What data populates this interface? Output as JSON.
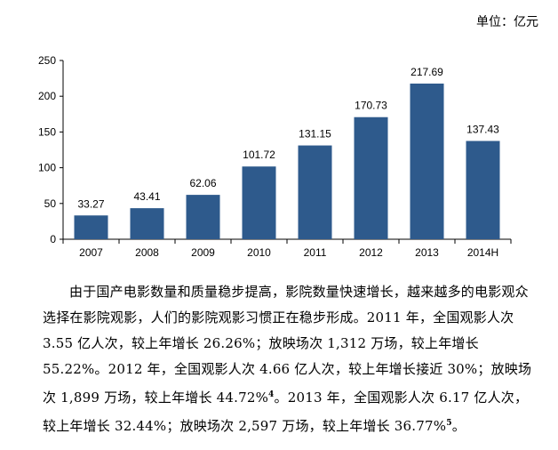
{
  "unit_label": "单位：亿元",
  "chart_data": {
    "type": "bar",
    "categories": [
      "2007",
      "2008",
      "2009",
      "2010",
      "2011",
      "2012",
      "2013",
      "2014H"
    ],
    "values": [
      33.27,
      43.41,
      62.06,
      101.72,
      131.15,
      170.73,
      217.69,
      137.43
    ],
    "value_labels": [
      "33.27",
      "43.41",
      "62.06",
      "101.72",
      "131.15",
      "170.73",
      "217.69",
      "137.43"
    ],
    "yticks": [
      "0",
      "50",
      "100",
      "150",
      "200",
      "250"
    ],
    "ylim": [
      0,
      250
    ],
    "bar_color": "#2e5a8c",
    "grid": false
  },
  "paragraph": {
    "text_1": "由于国产电影数量和质量稳步提高，影院数量快速增长，越来越多的电影观众选择在影院观影，人们的影院观影习惯正在稳步形成。2011 年，全国观影人次 3.55 亿人次，较上年增长 26.26%；放映场次 1,312 万场，较上年增长 55.22%。2012 年，全国观影人次 4.66 亿人次，较上年增长接近 30%；放映场次 1,899 万场，较上年增长 44.72%",
    "footnote_1": "4",
    "text_2": "。2013 年，全国观影人次 6.17 亿人次，较上年增长 32.44%；放映场次 2,597 万场，较上年增长 36.77%",
    "footnote_2": "5",
    "text_3": "。"
  }
}
